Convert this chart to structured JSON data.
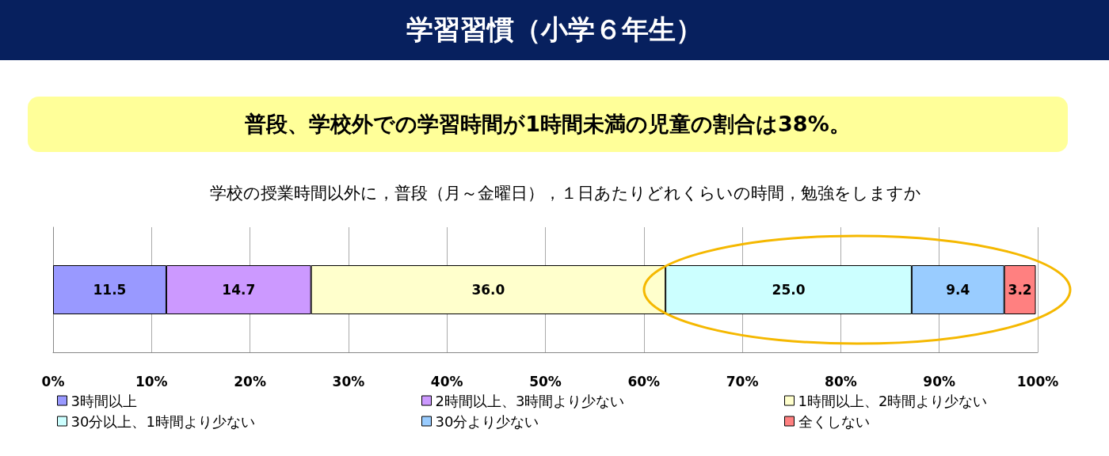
{
  "chart_data": {
    "type": "bar",
    "orientation": "horizontal",
    "stacked": true,
    "title": "学習習慣（小学６年生）",
    "subtitle": "普段、学校外での学習時間が1時間未満の児童の割合は38%。",
    "annotations": [
      "学校の授業時間以外に，普段（月～金曜日），１日あたりどれくらいの時間，勉強をしますか"
    ],
    "categories": [
      null
    ],
    "series": [
      {
        "name": "3時間以上",
        "color": "#9999ff",
        "values": [
          11.5
        ],
        "value_labels": [
          "11.5"
        ]
      },
      {
        "name": "2時間以上、3時間より少ない",
        "color": "#cc99ff",
        "values": [
          14.7
        ],
        "value_labels": [
          "14.7"
        ]
      },
      {
        "name": "1時間以上、2時間より少ない",
        "color": "#ffffcc",
        "values": [
          36
        ],
        "value_labels": [
          "36.0"
        ]
      },
      {
        "name": "30分以上、1時間より少ない",
        "color": "#ccffff",
        "values": [
          25
        ],
        "value_labels": [
          "25.0"
        ]
      },
      {
        "name": "30分より少ない",
        "color": "#99ccff",
        "values": [
          9.4
        ],
        "value_labels": [
          "9.4"
        ]
      },
      {
        "name": "全くしない",
        "color": "#ff8080",
        "values": [
          3.2
        ],
        "value_labels": [
          "3.2"
        ]
      }
    ],
    "xlim": [
      0,
      100
    ],
    "xticks": [
      {
        "value": 0,
        "label": "0%"
      },
      {
        "value": 10,
        "label": "10%"
      },
      {
        "value": 20,
        "label": "20%"
      },
      {
        "value": 30,
        "label": "30%"
      },
      {
        "value": 40,
        "label": "40%"
      },
      {
        "value": 50,
        "label": "50%"
      },
      {
        "value": 60,
        "label": "60%"
      },
      {
        "value": 70,
        "label": "70%"
      },
      {
        "value": 80,
        "label": "80%"
      },
      {
        "value": 90,
        "label": "90%"
      },
      {
        "value": 100,
        "label": "100%"
      }
    ],
    "grid": "x",
    "legend": "bottom"
  }
}
